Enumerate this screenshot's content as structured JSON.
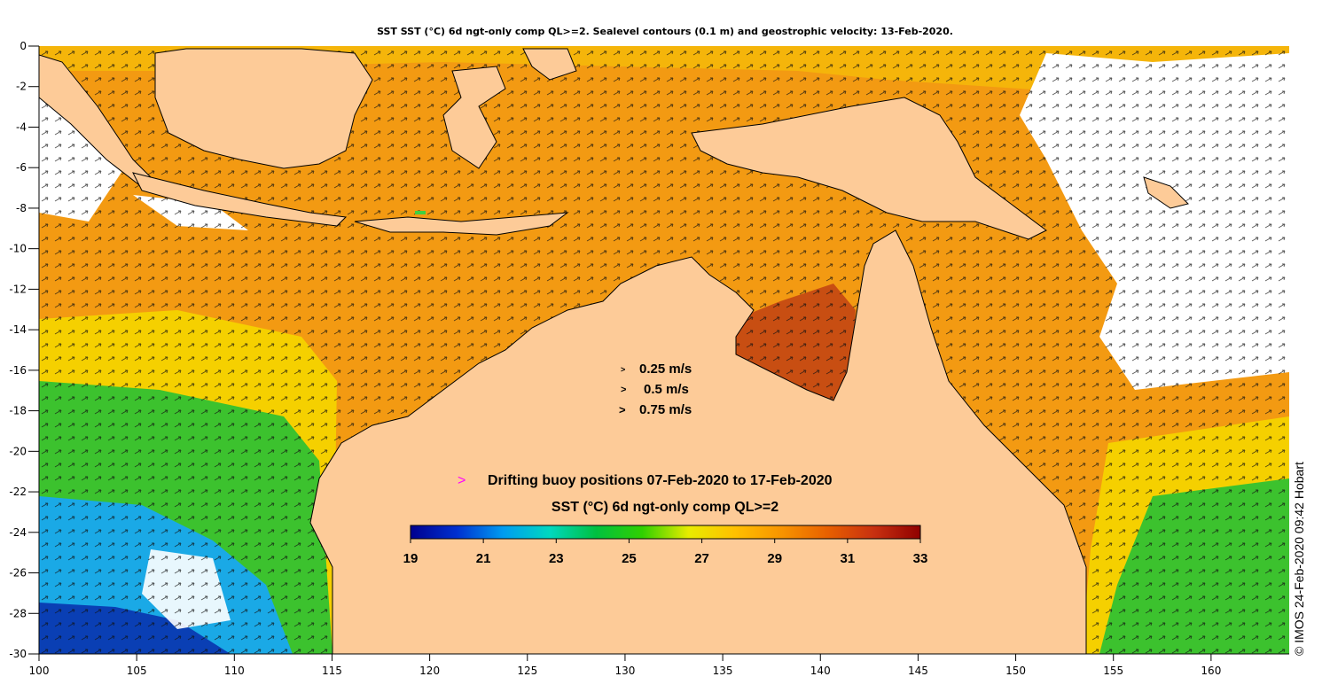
{
  "title": "SST SST (°C) 6d ngt-only comp QL>=2. Sealevel contours (0.1 m) and geostrophic velocity: 13-Feb-2020.",
  "credit": "© IMOS 24-Feb-2020 09:42 Hobart",
  "axes": {
    "lon_range": [
      100,
      164
    ],
    "lat_range": [
      -30,
      0
    ],
    "lon_ticks": [
      "100",
      "105",
      "110",
      "115",
      "120",
      "125",
      "130",
      "135",
      "140",
      "145",
      "150",
      "155",
      "160"
    ],
    "lat_ticks": [
      "0",
      "-2",
      "-4",
      "-6",
      "-8",
      "-10",
      "-12",
      "-14",
      "-16",
      "-18",
      "-20",
      "-22",
      "-24",
      "-26",
      "-28",
      "-30"
    ]
  },
  "velocity_legend": {
    "items": [
      "0.25 m/s",
      "0.5 m/s",
      "0.75 m/s"
    ],
    "symbol": ">"
  },
  "buoy_legend": {
    "symbol": ">",
    "label": "Drifting buoy positions 07-Feb-2020 to 17-Feb-2020",
    "color": "#ff00ff"
  },
  "colorbar": {
    "title": "SST (°C) 6d ngt-only comp QL>=2",
    "ticks": [
      "19",
      "21",
      "23",
      "25",
      "27",
      "29",
      "31",
      "33"
    ],
    "colors": [
      "#00008f",
      "#0030d0",
      "#009cf0",
      "#00d8c0",
      "#00c040",
      "#30d000",
      "#e8ec00",
      "#ffc000",
      "#f89400",
      "#e86000",
      "#c83010",
      "#8f0000"
    ]
  },
  "palette": {
    "land": "#fdcb98",
    "cloud": "#ffffff",
    "coast": "#000000",
    "sst_warm": "#f39a12",
    "sst_hot": "#c84e12",
    "sst_yellow": "#f5d000",
    "sst_green": "#3cc22e",
    "sst_cyan": "#1aa9e6",
    "sst_deep": "#0a3fb4"
  },
  "chart_data": {
    "type": "heatmap",
    "title": "SST SST (°C) 6d ngt-only comp QL>=2. Sealevel contours (0.1 m) and geostrophic velocity: 13-Feb-2020.",
    "x_range": [
      100,
      164
    ],
    "y_range": [
      -30,
      0
    ],
    "value_range": [
      19,
      33
    ]
  }
}
